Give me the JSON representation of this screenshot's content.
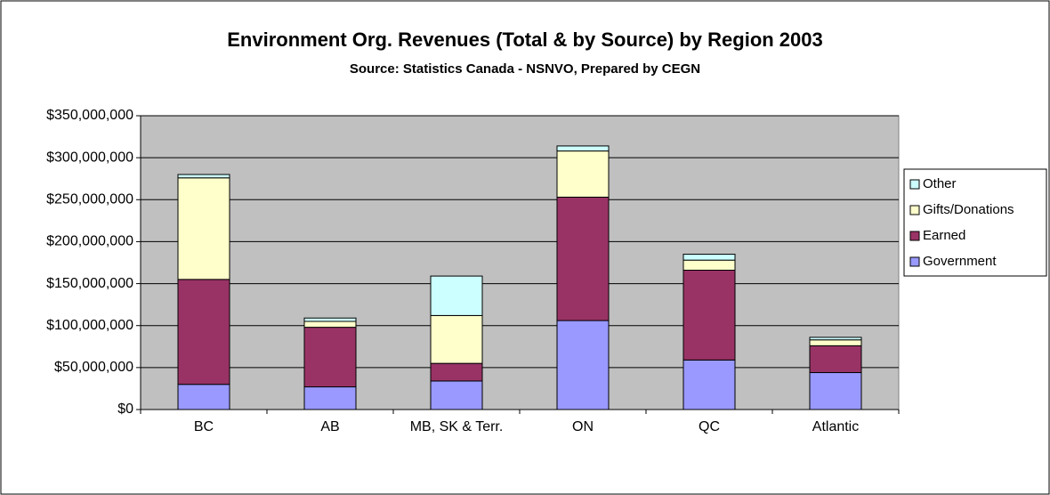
{
  "chart_data": {
    "type": "stacked_bar",
    "title": "Environment Org. Revenues (Total & by Source) by Region 2003",
    "subtitle": "Source:  Statistics Canada - NSNVO, Prepared by CEGN",
    "categories": [
      "BC",
      "AB",
      "MB, SK & Terr.",
      "ON",
      "QC",
      "Atlantic"
    ],
    "series": [
      {
        "name": "Government",
        "color": "#9999ff",
        "values": [
          30000000,
          27000000,
          34000000,
          106000000,
          59000000,
          44000000
        ]
      },
      {
        "name": "Earned",
        "color": "#993366",
        "values": [
          125000000,
          71000000,
          21000000,
          147000000,
          107000000,
          32000000
        ]
      },
      {
        "name": "Gifts/Donations",
        "color": "#ffffcc",
        "values": [
          121000000,
          7000000,
          57000000,
          55000000,
          12000000,
          7000000
        ]
      },
      {
        "name": "Other",
        "color": "#ccffff",
        "values": [
          4000000,
          4000000,
          47000000,
          6000000,
          7000000,
          3000000
        ]
      }
    ],
    "ylim": [
      0,
      350000000
    ],
    "yticks": [
      {
        "value": 0,
        "label": "$0"
      },
      {
        "value": 50000000,
        "label": "$50,000,000"
      },
      {
        "value": 100000000,
        "label": "$100,000,000"
      },
      {
        "value": 150000000,
        "label": "$150,000,000"
      },
      {
        "value": 200000000,
        "label": "$200,000,000"
      },
      {
        "value": 250000000,
        "label": "$250,000,000"
      },
      {
        "value": 300000000,
        "label": "$300,000,000"
      },
      {
        "value": 350000000,
        "label": "$350,000,000"
      }
    ],
    "grid": true,
    "legend": "right",
    "plot_background": "#c0c0c0"
  }
}
